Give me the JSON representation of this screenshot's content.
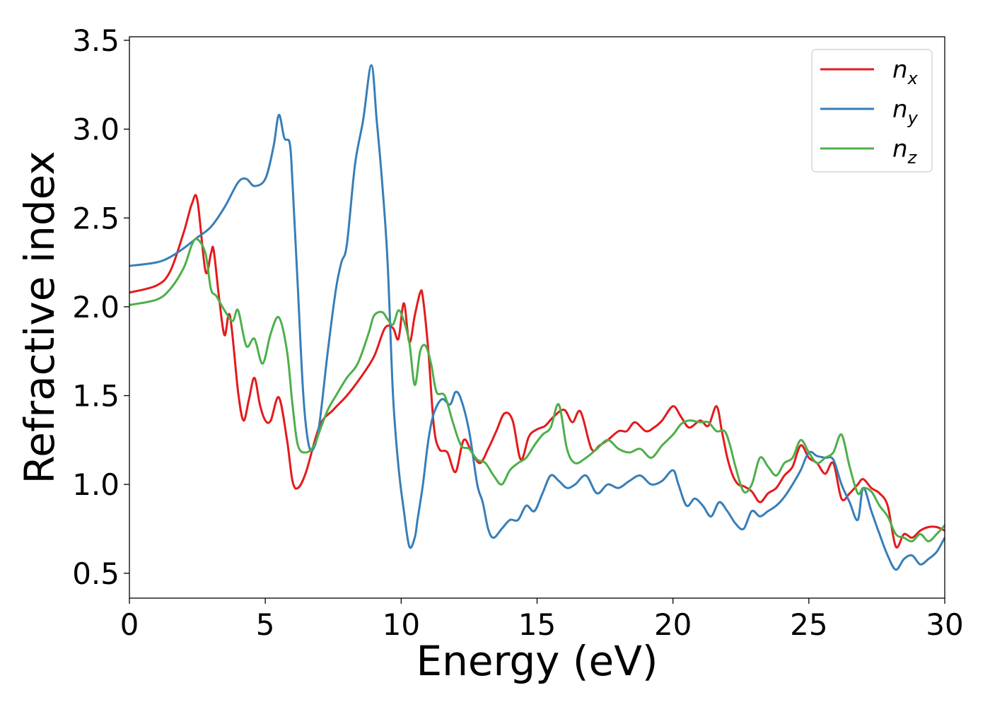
{
  "chart_data": {
    "type": "line",
    "title": "",
    "xlabel": "Energy (eV)",
    "ylabel": "Refractive index",
    "xlim": [
      0,
      30
    ],
    "ylim": [
      0.36,
      3.52
    ],
    "xticks": [
      0,
      5,
      10,
      15,
      20,
      25,
      30
    ],
    "xtick_labels": [
      "0",
      "5",
      "10",
      "15",
      "20",
      "25",
      "30"
    ],
    "yticks": [
      0.5,
      1.0,
      1.5,
      2.0,
      2.5,
      3.0,
      3.5
    ],
    "ytick_labels": [
      "0.5",
      "1.0",
      "1.5",
      "2.0",
      "2.5",
      "3.0",
      "3.5"
    ],
    "grid": false,
    "legend_position": "top-right",
    "series": [
      {
        "name": "n_x",
        "name_base": "n",
        "name_sub": "x",
        "color": "#e41a1c",
        "x": [
          0,
          1,
          1.5,
          2.0,
          2.3,
          2.5,
          2.8,
          3.0,
          3.1,
          3.3,
          3.5,
          3.7,
          4.0,
          4.2,
          4.4,
          4.6,
          4.8,
          5.0,
          5.2,
          5.5,
          5.8,
          6.0,
          6.2,
          6.5,
          7.0,
          7.5,
          8.0,
          8.5,
          9.0,
          9.4,
          9.7,
          9.9,
          10.1,
          10.3,
          10.5,
          10.7,
          10.8,
          11.0,
          11.2,
          11.4,
          11.7,
          12.0,
          12.3,
          12.6,
          12.9,
          13.2,
          13.5,
          13.8,
          14.1,
          14.4,
          14.7,
          15.0,
          15.3,
          15.6,
          16.0,
          16.3,
          16.6,
          17.0,
          17.3,
          17.6,
          18.0,
          18.3,
          18.6,
          19.0,
          19.3,
          19.6,
          20.0,
          20.3,
          20.6,
          21.0,
          21.3,
          21.6,
          21.8,
          22.0,
          22.2,
          22.4,
          22.6,
          22.9,
          23.2,
          23.5,
          23.8,
          24.1,
          24.4,
          24.7,
          25.0,
          25.3,
          25.6,
          25.9,
          26.2,
          26.5,
          26.8,
          27.0,
          27.3,
          27.6,
          27.9,
          28.2,
          28.5,
          28.8,
          29.1,
          29.4,
          29.7,
          30.0
        ],
        "y": [
          2.08,
          2.12,
          2.2,
          2.42,
          2.58,
          2.6,
          2.2,
          2.3,
          2.32,
          2.05,
          1.84,
          1.95,
          1.52,
          1.36,
          1.48,
          1.6,
          1.45,
          1.36,
          1.36,
          1.49,
          1.25,
          1.02,
          0.98,
          1.07,
          1.33,
          1.42,
          1.5,
          1.6,
          1.72,
          1.88,
          1.88,
          1.82,
          2.02,
          1.8,
          1.95,
          2.08,
          2.05,
          1.75,
          1.33,
          1.2,
          1.18,
          1.07,
          1.25,
          1.18,
          1.12,
          1.2,
          1.3,
          1.4,
          1.36,
          1.14,
          1.27,
          1.31,
          1.33,
          1.38,
          1.42,
          1.35,
          1.41,
          1.2,
          1.22,
          1.25,
          1.3,
          1.3,
          1.35,
          1.3,
          1.32,
          1.36,
          1.44,
          1.38,
          1.32,
          1.36,
          1.33,
          1.44,
          1.3,
          1.15,
          1.05,
          1.0,
          0.99,
          0.96,
          0.9,
          0.95,
          0.98,
          1.05,
          1.1,
          1.22,
          1.15,
          1.12,
          1.06,
          1.12,
          0.92,
          0.95,
          1.0,
          1.03,
          0.98,
          0.95,
          0.88,
          0.65,
          0.72,
          0.7,
          0.74,
          0.76,
          0.76,
          0.74
        ]
      },
      {
        "name": "n_y",
        "name_base": "n",
        "name_sub": "y",
        "color": "#377eb8",
        "x": [
          0,
          1,
          1.5,
          2.0,
          2.5,
          3.0,
          3.5,
          4.0,
          4.3,
          4.6,
          5.0,
          5.3,
          5.5,
          5.7,
          5.9,
          6.0,
          6.2,
          6.4,
          6.6,
          6.8,
          7.0,
          7.3,
          7.6,
          7.8,
          8.0,
          8.3,
          8.6,
          8.9,
          9.1,
          9.3,
          9.5,
          9.7,
          9.9,
          10.1,
          10.3,
          10.5,
          10.6,
          10.8,
          11.0,
          11.2,
          11.5,
          11.8,
          12.0,
          12.2,
          12.5,
          12.8,
          13.0,
          13.2,
          13.4,
          13.7,
          14.0,
          14.3,
          14.6,
          14.9,
          15.2,
          15.5,
          15.8,
          16.1,
          16.4,
          16.8,
          17.2,
          17.6,
          18.0,
          18.4,
          18.8,
          19.2,
          19.6,
          20.0,
          20.2,
          20.5,
          20.8,
          21.1,
          21.4,
          21.7,
          22.0,
          22.3,
          22.6,
          22.9,
          23.2,
          23.5,
          23.8,
          24.1,
          24.4,
          24.7,
          25.0,
          25.3,
          25.6,
          25.9,
          26.2,
          26.5,
          26.8,
          27.0,
          27.3,
          27.6,
          27.9,
          28.2,
          28.5,
          28.8,
          29.1,
          29.4,
          29.7,
          30.0
        ],
        "y": [
          2.23,
          2.25,
          2.28,
          2.33,
          2.39,
          2.45,
          2.56,
          2.7,
          2.72,
          2.68,
          2.72,
          2.9,
          3.08,
          2.95,
          2.92,
          2.7,
          2.1,
          1.5,
          1.22,
          1.21,
          1.35,
          1.75,
          2.1,
          2.25,
          2.35,
          2.8,
          3.05,
          3.36,
          3.05,
          2.7,
          2.25,
          1.5,
          1.1,
          0.85,
          0.65,
          0.7,
          0.8,
          1.0,
          1.25,
          1.4,
          1.48,
          1.45,
          1.52,
          1.48,
          1.3,
          1.0,
          0.9,
          0.75,
          0.7,
          0.75,
          0.8,
          0.8,
          0.88,
          0.85,
          0.95,
          1.05,
          1.02,
          0.98,
          1.0,
          1.05,
          0.95,
          1.0,
          0.98,
          1.02,
          1.05,
          1.0,
          1.02,
          1.08,
          1.0,
          0.88,
          0.92,
          0.88,
          0.82,
          0.9,
          0.85,
          0.78,
          0.75,
          0.85,
          0.82,
          0.85,
          0.88,
          0.93,
          1.0,
          1.08,
          1.18,
          1.16,
          1.15,
          1.14,
          1.0,
          0.9,
          0.8,
          0.98,
          0.85,
          0.72,
          0.6,
          0.52,
          0.58,
          0.6,
          0.55,
          0.58,
          0.62,
          0.7
        ]
      },
      {
        "name": "n_z",
        "name_base": "n",
        "name_sub": "z",
        "color": "#4daf4a",
        "x": [
          0,
          1,
          1.5,
          2.0,
          2.3,
          2.5,
          2.8,
          3.0,
          3.2,
          3.5,
          3.8,
          4.0,
          4.3,
          4.6,
          4.9,
          5.2,
          5.5,
          5.8,
          6.0,
          6.2,
          6.5,
          6.8,
          7.0,
          7.3,
          7.6,
          8.0,
          8.4,
          8.8,
          9.0,
          9.3,
          9.5,
          9.7,
          9.9,
          10.1,
          10.3,
          10.5,
          10.7,
          10.9,
          11.1,
          11.3,
          11.6,
          11.9,
          12.2,
          12.5,
          12.8,
          13.1,
          13.4,
          13.7,
          14.0,
          14.3,
          14.6,
          14.9,
          15.2,
          15.5,
          15.8,
          16.1,
          16.4,
          16.8,
          17.2,
          17.6,
          18.0,
          18.4,
          18.8,
          19.2,
          19.6,
          20.0,
          20.3,
          20.6,
          21.0,
          21.3,
          21.6,
          21.9,
          22.1,
          22.3,
          22.6,
          22.9,
          23.2,
          23.5,
          23.8,
          24.1,
          24.4,
          24.7,
          25.0,
          25.3,
          25.6,
          25.9,
          26.2,
          26.5,
          26.8,
          27.0,
          27.3,
          27.6,
          27.9,
          28.2,
          28.5,
          28.8,
          29.1,
          29.4,
          29.7,
          30.0
        ],
        "y": [
          2.01,
          2.04,
          2.1,
          2.22,
          2.35,
          2.38,
          2.3,
          2.1,
          2.06,
          1.98,
          1.92,
          1.98,
          1.78,
          1.82,
          1.68,
          1.85,
          1.94,
          1.75,
          1.45,
          1.22,
          1.18,
          1.22,
          1.3,
          1.42,
          1.5,
          1.6,
          1.68,
          1.85,
          1.95,
          1.97,
          1.93,
          1.9,
          1.98,
          1.92,
          1.8,
          1.56,
          1.75,
          1.78,
          1.68,
          1.52,
          1.5,
          1.35,
          1.22,
          1.2,
          1.14,
          1.12,
          1.05,
          1.0,
          1.08,
          1.12,
          1.15,
          1.22,
          1.28,
          1.32,
          1.45,
          1.2,
          1.12,
          1.15,
          1.2,
          1.25,
          1.2,
          1.18,
          1.2,
          1.15,
          1.22,
          1.28,
          1.34,
          1.36,
          1.35,
          1.35,
          1.3,
          1.3,
          1.22,
          1.1,
          0.96,
          1.0,
          1.15,
          1.1,
          1.05,
          1.12,
          1.15,
          1.25,
          1.18,
          1.12,
          1.15,
          1.18,
          1.28,
          1.1,
          0.95,
          0.98,
          0.96,
          0.88,
          0.82,
          0.72,
          0.7,
          0.68,
          0.72,
          0.68,
          0.72,
          0.77
        ]
      }
    ]
  }
}
